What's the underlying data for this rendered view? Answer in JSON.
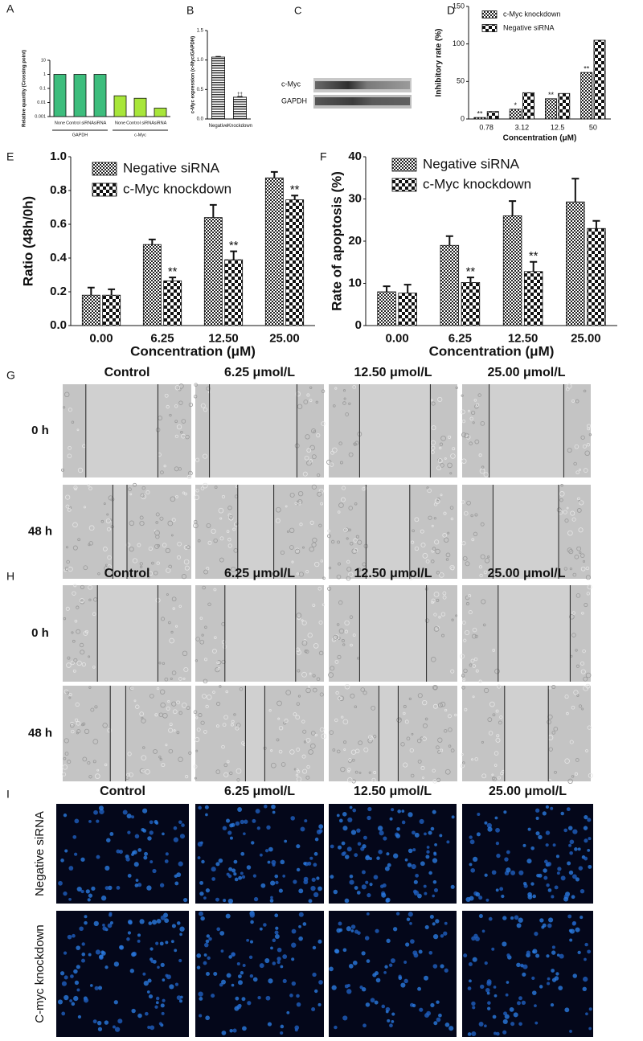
{
  "chart_data": [
    {
      "type": "bar",
      "panel_label": "A",
      "ylabel": "Relative quantity (Crossing point)",
      "log_scale": true,
      "categories": [
        "None",
        "Control siRNA",
        "siRNA",
        "None",
        "Control siRNA",
        "siRNA"
      ],
      "values": [
        1.0,
        1.0,
        1.0,
        0.03,
        0.02,
        0.004
      ],
      "colors": [
        "#3dbd7d",
        "#3dbd7d",
        "#3dbd7d",
        "#a8e63a",
        "#a8e63a",
        "#a8e63a"
      ],
      "groups": [
        {
          "name": "GAPDH",
          "count": 3
        },
        {
          "name": "c-Myc",
          "count": 3
        }
      ],
      "ylim": [
        0.001,
        10
      ],
      "yticks": [
        0.001,
        0.01,
        0.1,
        1,
        10
      ]
    },
    {
      "type": "bar",
      "panel_label": "B",
      "ylabel": "c-Myc expression (c-Myc/GAPDH)",
      "pattern": "lines",
      "categories": [
        "Negative",
        "Knockdown"
      ],
      "values": [
        1.05,
        0.37
      ],
      "errors": [
        0.01,
        0.01
      ],
      "annotations": [
        null,
        "††"
      ],
      "ylim": [
        0,
        1.5
      ],
      "yticks": [
        {
          "value": 0,
          "label": "0.0"
        },
        {
          "value": 0.5,
          "label": "0.5"
        },
        {
          "value": 1,
          "label": "1.0"
        },
        {
          "value": 1.5,
          "label": "1.5"
        }
      ]
    },
    {
      "type": "bar",
      "panel_label": "D",
      "ylabel": "Inhibitory rate (%)",
      "xlabel": "Concentration (μM)",
      "legend": true,
      "categories": [
        "0.78",
        "3.12",
        "12.5",
        "50"
      ],
      "series": [
        {
          "name": "c-Myc knockdown",
          "pattern": "fine",
          "values": [
            2,
            13,
            27,
            62
          ],
          "annotations": [
            "**",
            "*",
            "**",
            "**"
          ]
        },
        {
          "name": "Negative siRNA",
          "pattern": "coarse",
          "values": [
            10,
            35,
            34,
            105
          ]
        }
      ],
      "ylim": [
        0,
        150
      ],
      "yticks": [
        0,
        50,
        100,
        150
      ]
    },
    {
      "type": "bar",
      "panel_label": "E",
      "ylabel": "Ratio (48h/0h)",
      "xlabel": "Concentration (μM)",
      "legend": true,
      "categories": [
        "0.00",
        "6.25",
        "12.50",
        "25.00"
      ],
      "series": [
        {
          "name": "Negative siRNA",
          "pattern": "fine",
          "values": [
            0.18,
            0.48,
            0.64,
            0.875
          ],
          "errors": [
            0.045,
            0.03,
            0.075,
            0.035
          ]
        },
        {
          "name": "c-Myc knockdown",
          "pattern": "coarse",
          "values": [
            0.18,
            0.265,
            0.39,
            0.745
          ],
          "errors": [
            0.035,
            0.02,
            0.05,
            0.025
          ],
          "annotations": [
            null,
            "**",
            "**",
            "**"
          ]
        }
      ],
      "ylim": [
        0,
        1
      ],
      "yticks": [
        {
          "value": 0,
          "label": "0.0"
        },
        {
          "value": 0.2,
          "label": "0.2"
        },
        {
          "value": 0.4,
          "label": "0.4"
        },
        {
          "value": 0.6,
          "label": "0.6"
        },
        {
          "value": 0.8,
          "label": "0.8"
        },
        {
          "value": 1,
          "label": "1.0"
        }
      ]
    },
    {
      "type": "bar",
      "panel_label": "F",
      "ylabel": "Rate of apoptosis (%)",
      "xlabel": "Concentration (μM)",
      "legend": true,
      "categories": [
        "0.00",
        "6.25",
        "12.50",
        "25.00"
      ],
      "series": [
        {
          "name": "Negative siRNA",
          "pattern": "fine",
          "values": [
            8,
            19,
            26,
            29.3
          ],
          "errors": [
            1.3,
            2.2,
            3.5,
            5.5
          ]
        },
        {
          "name": "c-Myc knockdown",
          "pattern": "coarse",
          "values": [
            7.7,
            10.2,
            12.8,
            23
          ],
          "errors": [
            2,
            1.2,
            2.3,
            1.8
          ],
          "annotations": [
            null,
            "**",
            "**",
            null
          ]
        }
      ],
      "ylim": [
        0,
        40
      ],
      "yticks": [
        0,
        10,
        20,
        30,
        40
      ]
    }
  ],
  "blot": {
    "panel_label": "C",
    "rows": [
      "c-Myc",
      "GAPDH"
    ]
  },
  "scratch_G": {
    "panel_label": "G",
    "columns": [
      "Control",
      "6.25 μmol/L",
      "12.50 μmol/L",
      "25.00 μmol/L"
    ],
    "rows": [
      "0 h",
      "48 h"
    ]
  },
  "scratch_H": {
    "panel_label": "H",
    "columns": [
      "Control",
      "6.25 μmol/L",
      "12.50 μmol/L",
      "25.00 μmol/L"
    ],
    "rows": [
      "0 h",
      "48 h"
    ]
  },
  "fluorescence_I": {
    "panel_label": "I",
    "columns": [
      "Control",
      "6.25 μmol/L",
      "12.50 μmol/L",
      "25.00 μmol/L"
    ],
    "rows": [
      "Negative siRNA",
      "C-myc knockdown"
    ]
  }
}
